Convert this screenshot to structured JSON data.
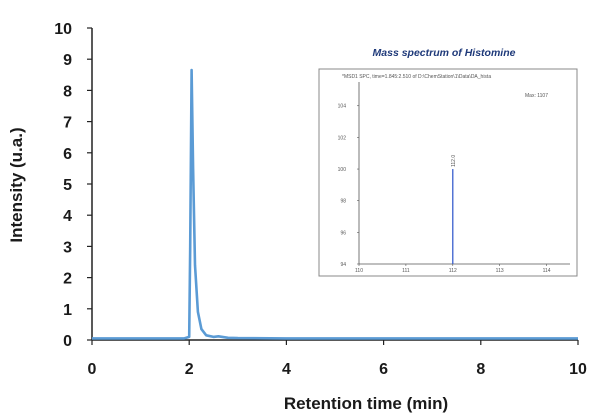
{
  "chart_data": {
    "type": "line",
    "xlabel": "Retention time (min)",
    "ylabel": "Intensity (u.a.)",
    "xlim": [
      0,
      10
    ],
    "ylim": [
      0,
      10
    ],
    "x_ticks": [
      "0",
      "2",
      "4",
      "6",
      "8",
      "10"
    ],
    "y_ticks": [
      "0",
      "1",
      "2",
      "3",
      "4",
      "5",
      "6",
      "7",
      "8",
      "9",
      "10"
    ],
    "grid": false,
    "series": [
      {
        "color": "#5b9bd5",
        "x": [
          0,
          1.9,
          2.0,
          2.02,
          2.05,
          2.08,
          2.12,
          2.18,
          2.25,
          2.35,
          2.5,
          2.6,
          2.8,
          3.0,
          4.0,
          10
        ],
        "y": [
          0.05,
          0.05,
          0.1,
          3.0,
          8.65,
          5.5,
          2.4,
          0.9,
          0.35,
          0.15,
          0.1,
          0.12,
          0.07,
          0.06,
          0.05,
          0.05
        ]
      }
    ],
    "inset": {
      "title": "Mass spectrum of Histomine",
      "header": "*MSD1 SPC, time=1.845:2.510 of D:\\ChemStation\\1\\Data\\DA_hista",
      "legend": "Max: 1107",
      "y_ticks": [
        "94",
        "96",
        "98",
        "100",
        "102",
        "104"
      ],
      "x_ticks": [
        "110",
        "111",
        "112",
        "113",
        "114"
      ],
      "peak": {
        "x": 112,
        "y": 100,
        "label": "112.0"
      },
      "xlim": [
        110,
        114.5
      ],
      "ylim": [
        94,
        105.5
      ]
    }
  }
}
